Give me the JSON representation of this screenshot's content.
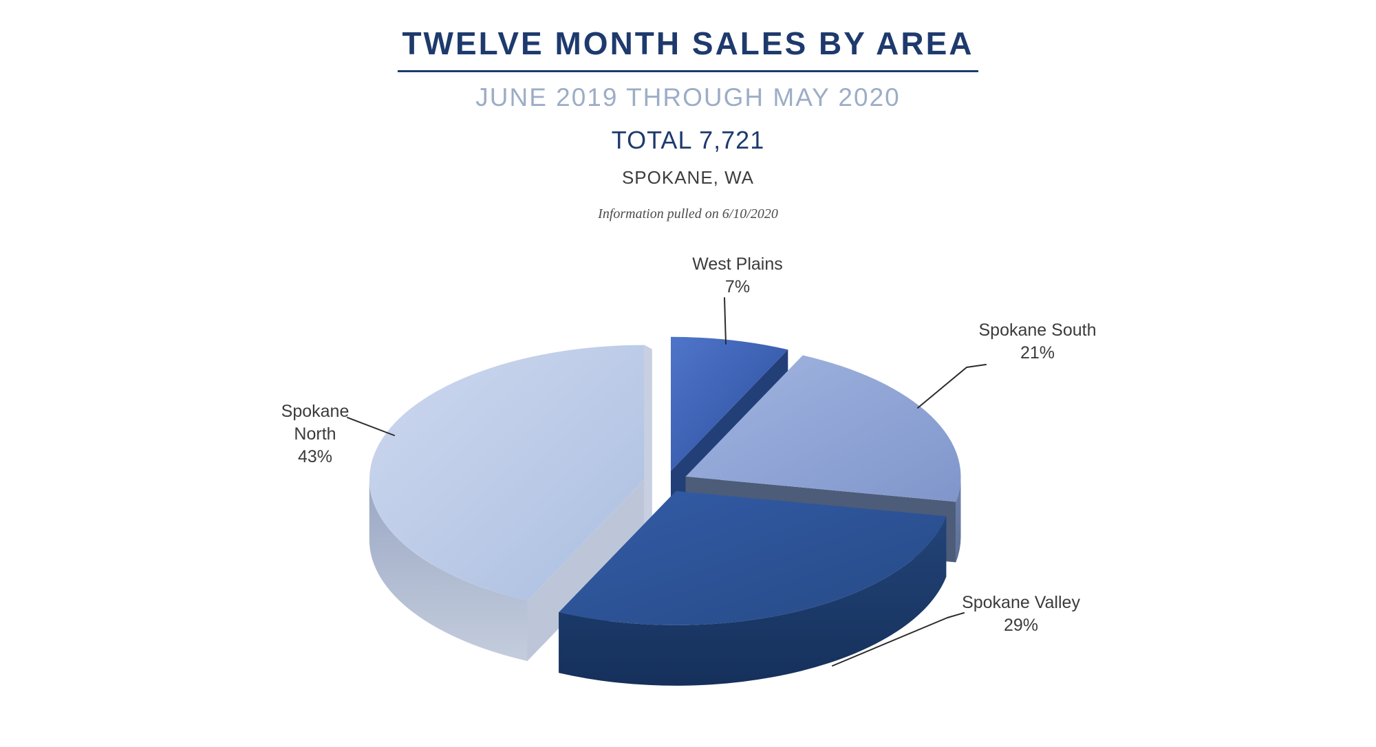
{
  "header": {
    "title": "TWELVE MONTH SALES BY AREA",
    "subtitle": "JUNE 2019 THROUGH MAY 2020",
    "total_label": "TOTAL 7,721",
    "location": "SPOKANE, WA",
    "note": "Information pulled on 6/10/2020"
  },
  "colors": {
    "title_navy": "#1e3a6d",
    "subtitle_gray_blue": "#9cadc6",
    "location_gray": "#3d3d3d",
    "label_gray": "#3b3b3b",
    "leader_line": "#2a2a2a",
    "background": "#ffffff"
  },
  "chart_data": {
    "type": "pie",
    "style": "3d-exploded",
    "title": "TWELVE MONTH SALES BY AREA",
    "subtitle": "JUNE 2019 THROUGH MAY 2020",
    "total": 7721,
    "location": "SPOKANE, WA",
    "note": "Information pulled on 6/10/2020",
    "start_angle_deg": 0,
    "direction": "clockwise",
    "legend_position": "data-labels",
    "slices": [
      {
        "label": "West Plains",
        "label_lines": [
          "West Plains"
        ],
        "pct": 7,
        "pct_label": "7%",
        "colors": {
          "top1": "#4f75ca",
          "top2": "#2b4d9b",
          "side1": "#223f78",
          "side2": "#1b3464",
          "cut": "#223f78",
          "cut2": "#223f78"
        }
      },
      {
        "label": "Spokane South",
        "label_lines": [
          "Spokane South"
        ],
        "pct": 21,
        "pct_label": "21%",
        "colors": {
          "top1": "#a2b5e1",
          "top2": "#8096cb",
          "side1": "#6f82ab",
          "side2": "#5b6e96",
          "cut": "#4d5c79",
          "cut2": "#4d5c79"
        }
      },
      {
        "label": "Spokane Valley",
        "label_lines": [
          "Spokane Valley"
        ],
        "pct": 29,
        "pct_label": "29%",
        "colors": {
          "top1": "#335ca7",
          "top2": "#274a86",
          "side1": "#234478",
          "side2": "#15305b",
          "cut": "#1f3d74",
          "cut2": "#1f3d74"
        }
      },
      {
        "label": "Spokane North",
        "label_lines": [
          "Spokane",
          "North"
        ],
        "pct": 43,
        "pct_label": "43%",
        "colors": {
          "top1": "#ced8ef",
          "top2": "#abbfe0",
          "side1": "#9aa7c4",
          "side2": "#c4cddd",
          "cut": "#bdc6d8",
          "cut2": "#c7cfe0"
        }
      }
    ]
  }
}
